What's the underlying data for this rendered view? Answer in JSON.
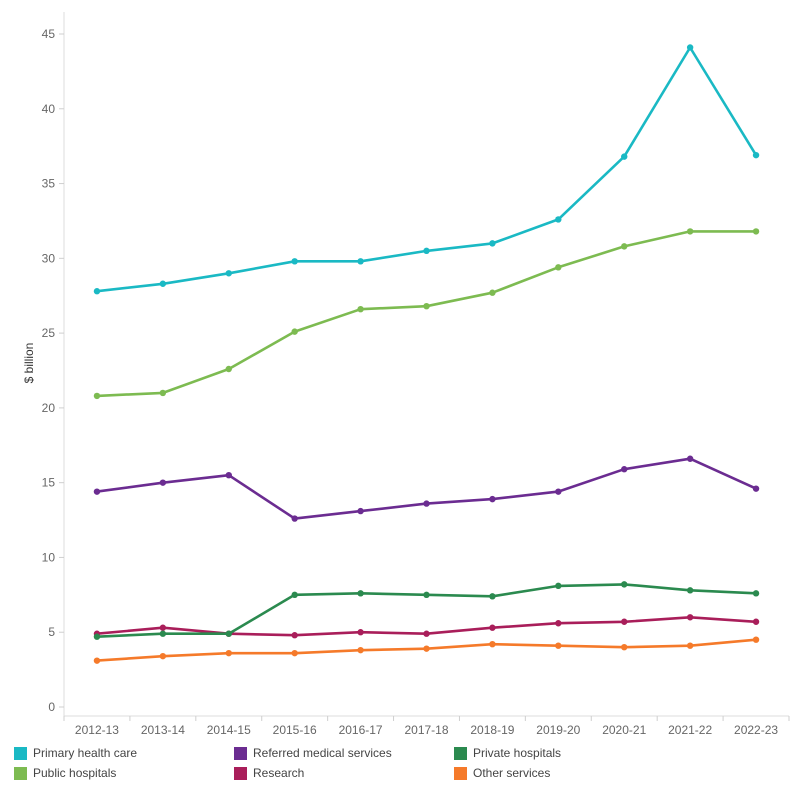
{
  "chart_data": {
    "type": "line",
    "ylabel": "$ billion",
    "xlabel": "",
    "ylim": [
      0,
      45
    ],
    "yticks": [
      0,
      5,
      10,
      15,
      20,
      25,
      30,
      35,
      40,
      45
    ],
    "grid": false,
    "legend_position": "bottom",
    "categories": [
      "2012-13",
      "2013-14",
      "2014-15",
      "2015-16",
      "2016-17",
      "2017-18",
      "2018-19",
      "2019-20",
      "2020-21",
      "2021-22",
      "2022-23"
    ],
    "series": [
      {
        "name": "Primary health care",
        "color": "#1ab9c4",
        "values": [
          27.8,
          28.3,
          29.0,
          29.8,
          29.8,
          30.5,
          31.0,
          32.6,
          36.8,
          44.1,
          36.9
        ]
      },
      {
        "name": "Public hospitals",
        "color": "#7dbb51",
        "values": [
          20.8,
          21.0,
          22.6,
          25.1,
          26.6,
          26.8,
          27.7,
          29.4,
          30.8,
          31.8,
          31.8
        ]
      },
      {
        "name": "Referred medical services",
        "color": "#6b2c91",
        "values": [
          14.4,
          15.0,
          15.5,
          12.6,
          13.1,
          13.6,
          13.9,
          14.4,
          15.9,
          16.6,
          14.6
        ]
      },
      {
        "name": "Research",
        "color": "#a91e5a",
        "values": [
          4.9,
          5.3,
          4.9,
          4.8,
          5.0,
          4.9,
          5.3,
          5.6,
          5.7,
          6.0,
          5.7
        ]
      },
      {
        "name": "Private hospitals",
        "color": "#2b8a4f",
        "values": [
          4.7,
          4.9,
          4.9,
          7.5,
          7.6,
          7.5,
          7.4,
          8.1,
          8.2,
          7.8,
          7.6
        ]
      },
      {
        "name": "Other services",
        "color": "#f57a2a",
        "values": [
          3.1,
          3.4,
          3.6,
          3.6,
          3.8,
          3.9,
          4.2,
          4.1,
          4.0,
          4.1,
          4.5
        ]
      }
    ]
  },
  "legend": [
    {
      "label": "Primary health care",
      "color": "#1ab9c4"
    },
    {
      "label": "Referred medical services",
      "color": "#6b2c91"
    },
    {
      "label": "Private hospitals",
      "color": "#2b8a4f"
    },
    {
      "label": "Public hospitals",
      "color": "#7dbb51"
    },
    {
      "label": "Research",
      "color": "#a91e5a"
    },
    {
      "label": "Other services",
      "color": "#f57a2a"
    }
  ]
}
